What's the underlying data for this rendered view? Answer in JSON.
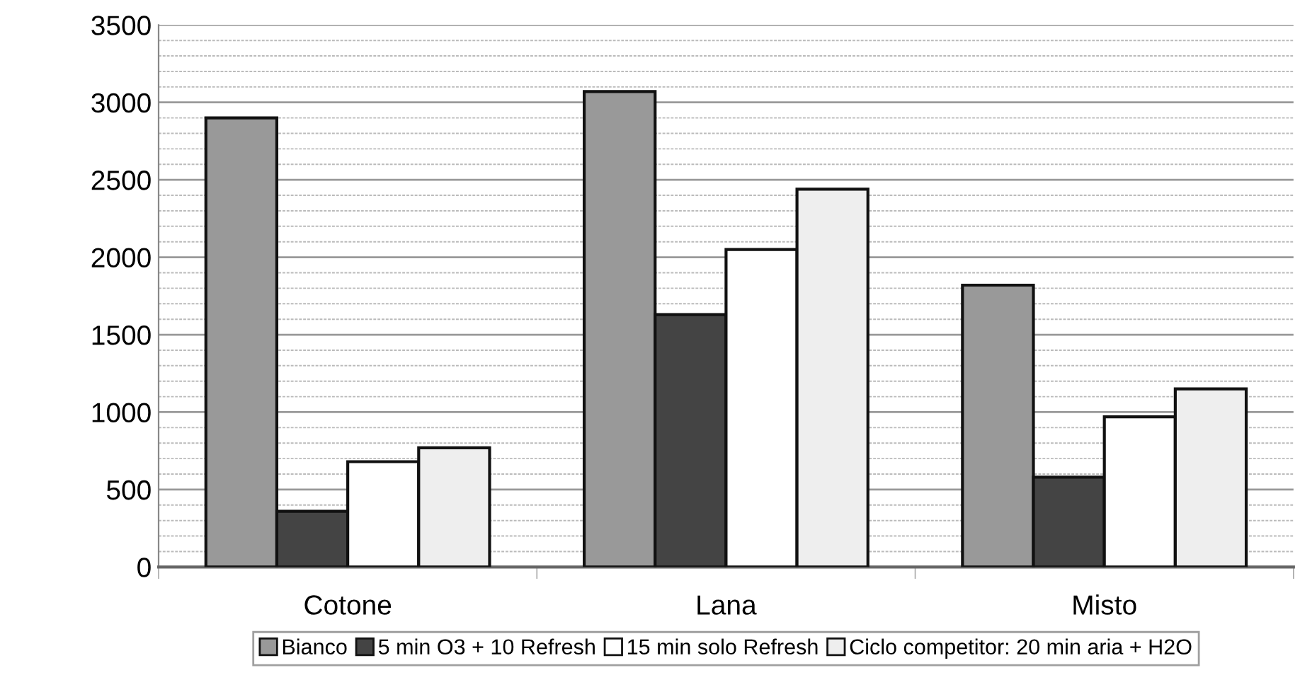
{
  "chart_data": {
    "type": "bar",
    "categories": [
      "Cotone",
      "Lana",
      "Misto"
    ],
    "series": [
      {
        "name": "Bianco",
        "color": "#999999",
        "values": [
          2900,
          3070,
          1820
        ]
      },
      {
        "name": "5 min O3 + 10 Refresh",
        "color": "#444444",
        "values": [
          360,
          1630,
          580
        ]
      },
      {
        "name": "15 min solo Refresh",
        "color": "#ffffff",
        "values": [
          680,
          2050,
          970
        ]
      },
      {
        "name": "Ciclo competitor: 20 min aria + H2O",
        "color": "#eeeeee",
        "values": [
          770,
          2440,
          1150
        ]
      }
    ],
    "ylim": [
      0,
      3500
    ],
    "yticks": [
      0,
      500,
      1000,
      1500,
      2000,
      2500,
      3000,
      3500
    ],
    "grid": "y",
    "legend": "bottom"
  }
}
